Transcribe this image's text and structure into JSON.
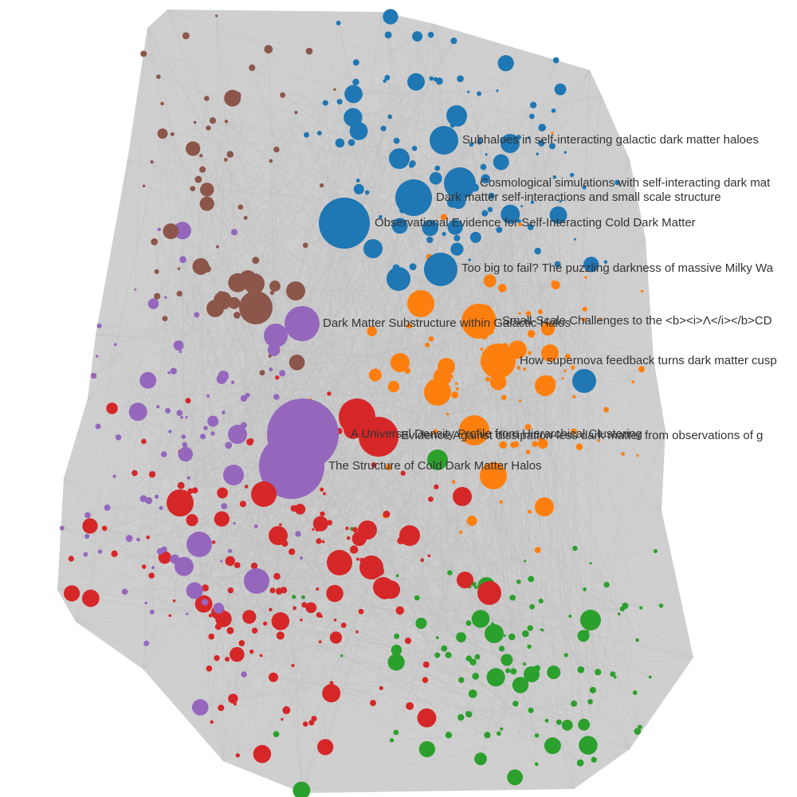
{
  "nodes": [
    {
      "label": "Subhaloes in self-interacting galactic dark matter haloes"
    },
    {
      "label": "Cosmological simulations with self-interacting dark mat"
    },
    {
      "label": "Dark matter self-interactions and small scale structure"
    },
    {
      "label": "Observational Evidence for Self-Interacting Cold Dark Matter"
    },
    {
      "label": "Too big to fail? The puzzling darkness of massive Milky Wa"
    },
    {
      "label": "Small-Scale Challenges to the <b><i>Λ</i></b>CD"
    },
    {
      "label": "Dark Matter Substructure within Galactic Halos"
    },
    {
      "label": "How supernova feedback turns dark matter cusp"
    },
    {
      "label": "A Universal Density Profile from Hierarchical Clustering"
    },
    {
      "label": "Evidence Against dissipation-less dark matter from observations of g"
    },
    {
      "label": "The Structure of Cold Dark Matter Halos"
    }
  ]
}
